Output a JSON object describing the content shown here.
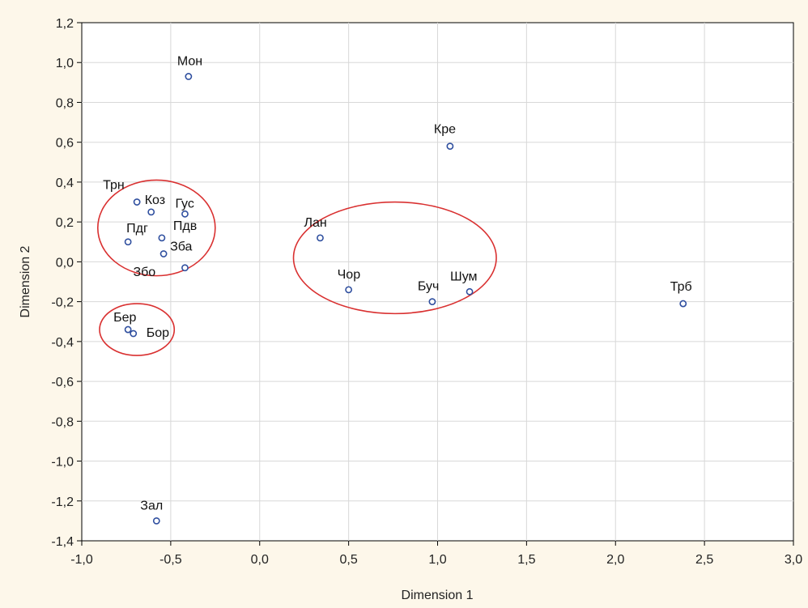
{
  "colors": {
    "background": "#fdf7ea",
    "plot_background": "#ffffff",
    "grid": "#d8d8d8",
    "marker": "#2f4f9f",
    "highlight": "#d93030"
  },
  "chart_data": {
    "type": "scatter",
    "title": "",
    "xlabel": "Dimension 1",
    "ylabel": "Dimension 2",
    "xlim": [
      -1.0,
      3.0
    ],
    "ylim": [
      -1.4,
      1.2
    ],
    "grid": true,
    "x_ticks": [
      -1.0,
      -0.5,
      0.0,
      0.5,
      1.0,
      1.5,
      2.0,
      2.5,
      3.0
    ],
    "y_ticks": [
      1.2,
      1.0,
      0.8,
      0.6,
      0.4,
      0.2,
      0.0,
      -0.2,
      -0.4,
      -0.6,
      -0.8,
      -1.0,
      -1.2,
      -1.4
    ],
    "x_tick_labels": [
      "-1,0",
      "-0,5",
      "0,0",
      "0,5",
      "1,0",
      "1,5",
      "2,0",
      "2,5",
      "3,0"
    ],
    "y_tick_labels": [
      "1,2",
      "1,0",
      "0,8",
      "0,6",
      "0,4",
      "0,2",
      "0,0",
      "-0,2",
      "-0,4",
      "-0,6",
      "-0,8",
      "-1,0",
      "-1,2",
      "-1,4"
    ],
    "points": [
      {
        "label": "Мон",
        "x": -0.4,
        "y": 0.93
      },
      {
        "label": "Кре",
        "x": 1.07,
        "y": 0.58
      },
      {
        "label": "Трн",
        "x": -0.69,
        "y": 0.3
      },
      {
        "label": "Коз",
        "x": -0.61,
        "y": 0.25
      },
      {
        "label": "Гус",
        "x": -0.42,
        "y": 0.24
      },
      {
        "label": "Пдг",
        "x": -0.74,
        "y": 0.1
      },
      {
        "label": "Пдв",
        "x": -0.55,
        "y": 0.12
      },
      {
        "label": "Зба",
        "x": -0.54,
        "y": 0.04
      },
      {
        "label": "Збо",
        "x": -0.42,
        "y": -0.03
      },
      {
        "label": "Лан",
        "x": 0.34,
        "y": 0.12
      },
      {
        "label": "Чор",
        "x": 0.5,
        "y": -0.14
      },
      {
        "label": "Буч",
        "x": 0.97,
        "y": -0.2
      },
      {
        "label": "Шум",
        "x": 1.18,
        "y": -0.15
      },
      {
        "label": "Трб",
        "x": 2.38,
        "y": -0.21
      },
      {
        "label": "Бер",
        "x": -0.74,
        "y": -0.34
      },
      {
        "label": "Бор",
        "x": -0.71,
        "y": -0.36
      },
      {
        "label": "Зал",
        "x": -0.58,
        "y": -1.3
      }
    ],
    "annotations": [
      {
        "shape": "ellipse",
        "cx": -0.58,
        "cy": 0.17,
        "rx": 0.33,
        "ry": 0.24
      },
      {
        "shape": "ellipse",
        "cx": 0.76,
        "cy": 0.02,
        "rx": 0.57,
        "ry": 0.28
      },
      {
        "shape": "ellipse",
        "cx": -0.69,
        "cy": -0.34,
        "rx": 0.21,
        "ry": 0.13
      }
    ]
  }
}
